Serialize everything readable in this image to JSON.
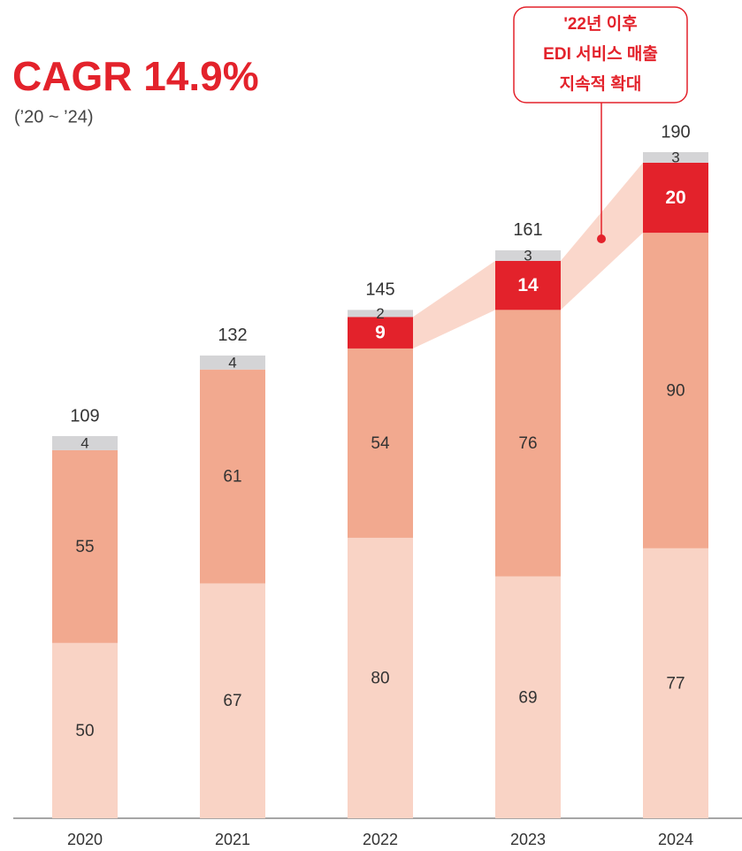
{
  "chart_data": {
    "type": "stacked_bar",
    "title": "CAGR 14.9%",
    "subtitle": "(’20 ~ ’24)",
    "annotation": [
      "'22년 이후",
      "EDI 서비스 매출",
      "지속적 확대"
    ],
    "categories": [
      "2020",
      "2021",
      "2022",
      "2023",
      "2024"
    ],
    "series": [
      {
        "color": "#f9d3c5",
        "values": [
          50,
          67,
          80,
          69,
          77
        ]
      },
      {
        "color": "#f2a98f",
        "values": [
          55,
          61,
          54,
          76,
          90
        ]
      },
      {
        "color": "#e3222b",
        "values": [
          null,
          null,
          9,
          14,
          20
        ]
      },
      {
        "color": "#d4d4d6",
        "values": [
          4,
          4,
          2,
          3,
          3
        ]
      }
    ],
    "totals": [
      109,
      132,
      145,
      161,
      190
    ]
  }
}
